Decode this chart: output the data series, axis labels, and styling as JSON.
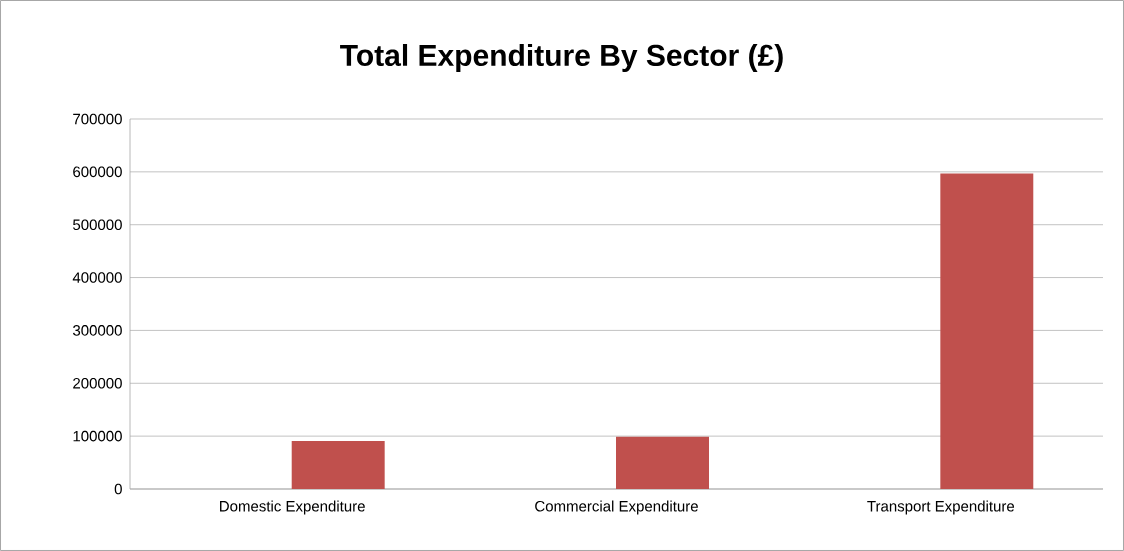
{
  "chart_data": {
    "type": "bar",
    "title": "Total Expenditure By Sector (£)",
    "categories": [
      "Domestic Expenditure",
      "Commercial Expenditure",
      "Transport Expenditure"
    ],
    "values": [
      91000,
      99000,
      597000
    ],
    "color": "#c0504d",
    "ylim": [
      0,
      700000
    ],
    "yticks": [
      0,
      100000,
      200000,
      300000,
      400000,
      500000,
      600000,
      700000
    ],
    "grid": "y"
  }
}
